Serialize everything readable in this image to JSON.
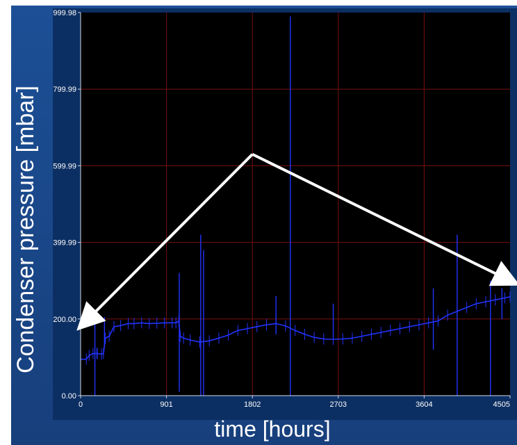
{
  "chart_data": {
    "type": "line",
    "title": "",
    "xlabel": "time [hours]",
    "ylabel": "Condenser pressure [mbar]",
    "xlim": [
      0,
      4505
    ],
    "ylim": [
      0,
      999.98
    ],
    "x_ticks": [
      0,
      901,
      1802,
      2703,
      3604,
      4505
    ],
    "x_tick_labels": [
      "0",
      "901",
      "1802",
      "2703",
      "3604",
      "4505"
    ],
    "y_ticks": [
      0,
      200.0,
      399.99,
      599.99,
      799.99,
      999.98
    ],
    "y_tick_labels": [
      "0.00",
      "200.00",
      "399.99",
      "599.99",
      "799.99",
      "999.98"
    ],
    "grid": true,
    "colors": {
      "background": "#000000",
      "grid": "#7a1010",
      "series": "#2233ff",
      "arrow": "#ffffff",
      "panel": "#1a4a8c"
    },
    "series": [
      {
        "name": "",
        "points": [
          [
            0,
            95
          ],
          [
            60,
            95
          ],
          [
            90,
            105
          ],
          [
            130,
            110
          ],
          [
            170,
            110
          ],
          [
            175,
            110
          ],
          [
            220,
            108
          ],
          [
            240,
            110
          ],
          [
            260,
            150
          ],
          [
            300,
            155
          ],
          [
            350,
            180
          ],
          [
            420,
            183
          ],
          [
            500,
            188
          ],
          [
            560,
            188
          ],
          [
            640,
            190
          ],
          [
            720,
            188
          ],
          [
            800,
            189
          ],
          [
            880,
            190
          ],
          [
            960,
            190
          ],
          [
            1000,
            190
          ],
          [
            1030,
            195
          ],
          [
            1045,
            155
          ],
          [
            1080,
            150
          ],
          [
            1150,
            145
          ],
          [
            1250,
            140
          ],
          [
            1350,
            143
          ],
          [
            1450,
            150
          ],
          [
            1550,
            158
          ],
          [
            1650,
            170
          ],
          [
            1750,
            175
          ],
          [
            1850,
            180
          ],
          [
            1950,
            185
          ],
          [
            2050,
            188
          ],
          [
            2150,
            182
          ],
          [
            2250,
            170
          ],
          [
            2350,
            160
          ],
          [
            2450,
            152
          ],
          [
            2550,
            148
          ],
          [
            2650,
            147
          ],
          [
            2750,
            148
          ],
          [
            2850,
            150
          ],
          [
            2950,
            155
          ],
          [
            3050,
            160
          ],
          [
            3150,
            165
          ],
          [
            3250,
            170
          ],
          [
            3350,
            175
          ],
          [
            3450,
            180
          ],
          [
            3550,
            185
          ],
          [
            3650,
            190
          ],
          [
            3750,
            195
          ],
          [
            3850,
            210
          ],
          [
            3950,
            220
          ],
          [
            4050,
            230
          ],
          [
            4150,
            240
          ],
          [
            4250,
            245
          ],
          [
            4350,
            250
          ],
          [
            4450,
            255
          ],
          [
            4505,
            258
          ]
        ],
        "spikes": [
          [
            150,
            0,
            200
          ],
          [
            250,
            130,
            205
          ],
          [
            1260,
            0,
            420
          ],
          [
            1290,
            0,
            380
          ],
          [
            1035,
            10,
            320
          ],
          [
            2200,
            0,
            990
          ],
          [
            2650,
            150,
            240
          ],
          [
            2050,
            160,
            260
          ],
          [
            3700,
            120,
            280
          ],
          [
            3950,
            0,
            420
          ],
          [
            4300,
            0,
            300
          ],
          [
            4420,
            200,
            280
          ]
        ]
      }
    ],
    "annotations": [
      {
        "type": "arrow",
        "from": [
          1802,
          630
        ],
        "to": [
          40,
          190
        ]
      },
      {
        "type": "arrow",
        "from": [
          1802,
          630
        ],
        "to": [
          4505,
          300
        ]
      }
    ]
  }
}
